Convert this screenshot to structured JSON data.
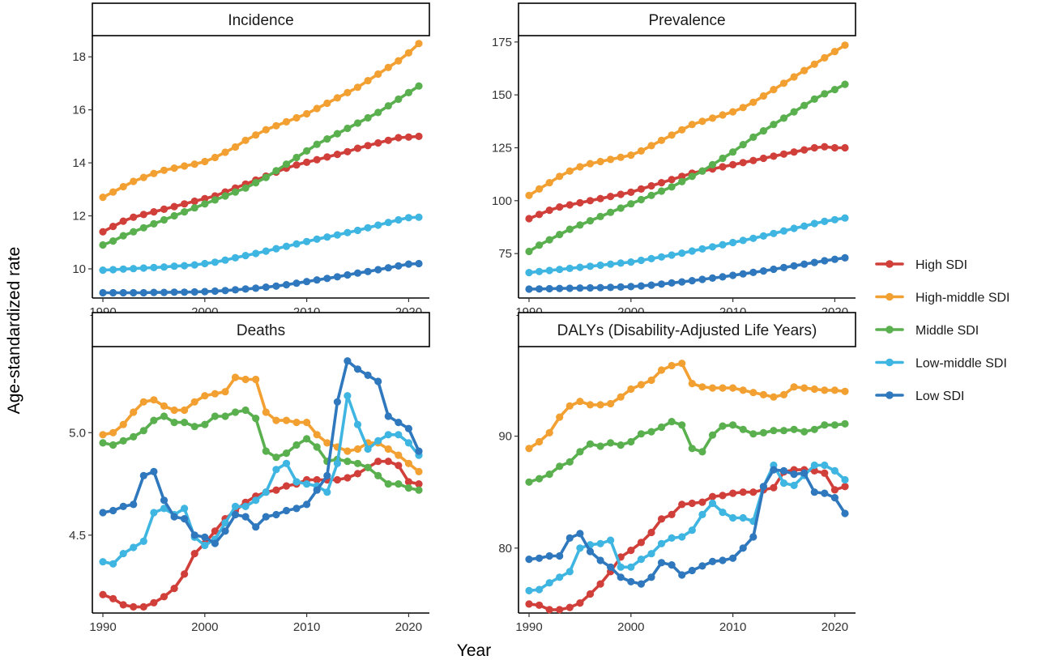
{
  "chart_data": {
    "type": "line",
    "xlabel": "Year",
    "ylabel": "Age-standardized rate",
    "legend_position": "right",
    "x": [
      1990,
      1991,
      1992,
      1993,
      1994,
      1995,
      1996,
      1997,
      1998,
      1999,
      2000,
      2001,
      2002,
      2003,
      2004,
      2005,
      2006,
      2007,
      2008,
      2009,
      2010,
      2011,
      2012,
      2013,
      2014,
      2015,
      2016,
      2017,
      2018,
      2019,
      2020,
      2021
    ],
    "series_styles": [
      {
        "name": "High SDI",
        "color": "#d13f3a"
      },
      {
        "name": "High-middle SDI",
        "color": "#f3a032"
      },
      {
        "name": "Middle SDI",
        "color": "#5ab04e"
      },
      {
        "name": "Low-middle SDI",
        "color": "#3fb5e1"
      },
      {
        "name": "Low SDI",
        "color": "#2f78bd"
      }
    ],
    "panels": [
      {
        "title": "Incidence",
        "xlim": [
          1990,
          2021
        ],
        "ylim": [
          8.9,
          18.8
        ],
        "x_ticks": [
          1990,
          2000,
          2010,
          2020
        ],
        "y_ticks": [
          10,
          12,
          14,
          16,
          18
        ],
        "y_tick_labels": [
          "10",
          "12",
          "14",
          "16",
          "18"
        ],
        "series": [
          {
            "name": "High SDI",
            "values": [
              11.4,
              11.6,
              11.8,
              11.95,
              12.05,
              12.15,
              12.25,
              12.35,
              12.45,
              12.55,
              12.65,
              12.75,
              12.9,
              13.05,
              13.2,
              13.35,
              13.5,
              13.65,
              13.8,
              13.92,
              14.02,
              14.12,
              14.22,
              14.32,
              14.42,
              14.55,
              14.65,
              14.75,
              14.85,
              14.95,
              14.97,
              15.0
            ]
          },
          {
            "name": "High-middle SDI",
            "values": [
              12.7,
              12.9,
              13.1,
              13.3,
              13.45,
              13.6,
              13.72,
              13.8,
              13.88,
              13.95,
              14.05,
              14.2,
              14.4,
              14.6,
              14.85,
              15.05,
              15.25,
              15.4,
              15.55,
              15.7,
              15.85,
              16.05,
              16.25,
              16.45,
              16.65,
              16.85,
              17.1,
              17.35,
              17.6,
              17.85,
              18.15,
              18.5
            ]
          },
          {
            "name": "Middle SDI",
            "values": [
              10.9,
              11.05,
              11.25,
              11.4,
              11.55,
              11.7,
              11.85,
              12.0,
              12.15,
              12.3,
              12.45,
              12.6,
              12.75,
              12.9,
              13.05,
              13.25,
              13.45,
              13.7,
              13.95,
              14.2,
              14.45,
              14.7,
              14.9,
              15.1,
              15.3,
              15.5,
              15.7,
              15.9,
              16.15,
              16.4,
              16.65,
              16.9
            ]
          },
          {
            "name": "Low-middle SDI",
            "values": [
              9.95,
              9.97,
              9.99,
              10.01,
              10.03,
              10.05,
              10.07,
              10.1,
              10.12,
              10.15,
              10.2,
              10.25,
              10.33,
              10.42,
              10.5,
              10.58,
              10.67,
              10.76,
              10.85,
              10.94,
              11.03,
              11.12,
              11.2,
              11.28,
              11.37,
              11.45,
              11.55,
              11.65,
              11.75,
              11.85,
              11.93,
              11.95
            ]
          },
          {
            "name": "Low SDI",
            "values": [
              9.1,
              9.1,
              9.1,
              9.1,
              9.1,
              9.11,
              9.11,
              9.12,
              9.12,
              9.13,
              9.14,
              9.16,
              9.18,
              9.21,
              9.24,
              9.27,
              9.31,
              9.35,
              9.4,
              9.46,
              9.52,
              9.58,
              9.64,
              9.7,
              9.77,
              9.84,
              9.9,
              9.97,
              10.04,
              10.11,
              10.18,
              10.2
            ]
          }
        ]
      },
      {
        "title": "Prevalence",
        "xlim": [
          1990,
          2021
        ],
        "ylim": [
          54,
          178
        ],
        "x_ticks": [
          1990,
          2000,
          2010,
          2020
        ],
        "y_ticks": [
          75,
          100,
          125,
          150,
          175
        ],
        "y_tick_labels": [
          "75",
          "100",
          "125",
          "150",
          "175"
        ],
        "series": [
          {
            "name": "High SDI",
            "values": [
              91.5,
              93.5,
              95.5,
              97.0,
              98.0,
              99.0,
              100.0,
              101.0,
              102.0,
              103.0,
              104.0,
              105.5,
              107.0,
              108.5,
              110.0,
              111.5,
              113.0,
              114.0,
              115.0,
              116.0,
              117.0,
              118.0,
              119.0,
              120.0,
              121.0,
              122.0,
              123.0,
              124.0,
              125.0,
              125.5,
              125.0,
              125.0
            ]
          },
          {
            "name": "High-middle SDI",
            "values": [
              102.5,
              105.5,
              108.5,
              111.5,
              114.0,
              116.0,
              117.5,
              118.5,
              119.5,
              120.5,
              121.5,
              123.5,
              126.0,
              128.5,
              131.0,
              133.5,
              136.0,
              137.5,
              139.0,
              140.5,
              142.0,
              144.0,
              146.5,
              149.5,
              152.5,
              155.5,
              158.5,
              161.5,
              164.5,
              167.5,
              170.5,
              173.5
            ]
          },
          {
            "name": "Middle SDI",
            "values": [
              76.0,
              79.0,
              81.5,
              84.0,
              86.5,
              88.5,
              90.5,
              92.5,
              94.5,
              96.5,
              98.5,
              100.5,
              102.5,
              104.5,
              106.5,
              109.0,
              111.5,
              114.0,
              117.0,
              120.0,
              123.0,
              126.5,
              130.0,
              133.0,
              136.0,
              139.0,
              142.0,
              145.0,
              148.0,
              150.5,
              152.5,
              155.0
            ]
          },
          {
            "name": "Low-middle SDI",
            "values": [
              66.0,
              66.5,
              67.0,
              67.5,
              68.0,
              68.5,
              69.0,
              69.5,
              70.0,
              70.5,
              71.0,
              71.8,
              72.6,
              73.4,
              74.3,
              75.2,
              76.2,
              77.2,
              78.2,
              79.2,
              80.2,
              81.2,
              82.2,
              83.3,
              84.5,
              85.7,
              86.9,
              88.0,
              89.2,
              90.2,
              91.0,
              91.8
            ]
          },
          {
            "name": "Low SDI",
            "values": [
              58.2,
              58.3,
              58.4,
              58.5,
              58.6,
              58.7,
              58.8,
              58.9,
              59.0,
              59.2,
              59.4,
              59.7,
              60.1,
              60.6,
              61.1,
              61.6,
              62.2,
              62.8,
              63.4,
              64.0,
              64.7,
              65.4,
              66.1,
              66.8,
              67.6,
              68.4,
              69.2,
              70.0,
              70.8,
              71.6,
              72.3,
              73.0
            ]
          }
        ]
      },
      {
        "title": "Deaths",
        "xlim": [
          1990,
          2021
        ],
        "ylim": [
          4.12,
          5.42
        ],
        "x_ticks": [
          1990,
          2000,
          2010,
          2020
        ],
        "y_ticks": [
          4.5,
          5.0
        ],
        "y_tick_labels": [
          "4.5",
          "5.0"
        ],
        "series": [
          {
            "name": "High SDI",
            "values": [
              4.21,
              4.19,
              4.16,
              4.15,
              4.15,
              4.17,
              4.2,
              4.24,
              4.31,
              4.41,
              4.46,
              4.52,
              4.58,
              4.62,
              4.66,
              4.69,
              4.71,
              4.72,
              4.74,
              4.75,
              4.77,
              4.77,
              4.77,
              4.77,
              4.78,
              4.8,
              4.83,
              4.86,
              4.86,
              4.84,
              4.76,
              4.75
            ]
          },
          {
            "name": "High-middle SDI",
            "values": [
              4.99,
              5.0,
              5.04,
              5.1,
              5.15,
              5.16,
              5.13,
              5.11,
              5.11,
              5.15,
              5.18,
              5.19,
              5.2,
              5.27,
              5.26,
              5.26,
              5.1,
              5.06,
              5.06,
              5.05,
              5.05,
              4.99,
              4.95,
              4.93,
              4.91,
              4.92,
              4.95,
              4.95,
              4.92,
              4.89,
              4.85,
              4.81
            ]
          },
          {
            "name": "Middle SDI",
            "values": [
              4.95,
              4.94,
              4.96,
              4.98,
              5.01,
              5.06,
              5.08,
              5.05,
              5.05,
              5.03,
              5.04,
              5.08,
              5.08,
              5.1,
              5.11,
              5.07,
              4.91,
              4.88,
              4.9,
              4.94,
              4.97,
              4.93,
              4.86,
              4.87,
              4.86,
              4.85,
              4.83,
              4.79,
              4.75,
              4.75,
              4.73,
              4.72
            ]
          },
          {
            "name": "Low-middle SDI",
            "values": [
              4.37,
              4.36,
              4.41,
              4.44,
              4.47,
              4.61,
              4.63,
              4.6,
              4.63,
              4.49,
              4.45,
              4.48,
              4.56,
              4.64,
              4.64,
              4.67,
              4.71,
              4.82,
              4.85,
              4.76,
              4.75,
              4.74,
              4.71,
              4.85,
              5.18,
              5.04,
              4.92,
              4.96,
              4.99,
              4.99,
              4.95,
              4.89
            ]
          },
          {
            "name": "Low SDI",
            "values": [
              4.61,
              4.62,
              4.64,
              4.65,
              4.79,
              4.81,
              4.67,
              4.59,
              4.58,
              4.5,
              4.49,
              4.46,
              4.52,
              4.6,
              4.59,
              4.54,
              4.59,
              4.6,
              4.62,
              4.63,
              4.65,
              4.72,
              4.79,
              5.15,
              5.35,
              5.31,
              5.28,
              5.25,
              5.08,
              5.05,
              5.02,
              4.91
            ]
          }
        ]
      },
      {
        "title": "DALYs (Disability-Adjusted Life Years)",
        "xlim": [
          1990,
          2021
        ],
        "ylim": [
          74.2,
          98.0
        ],
        "x_ticks": [
          1990,
          2000,
          2010,
          2020
        ],
        "y_ticks": [
          80,
          90
        ],
        "y_tick_labels": [
          "80",
          "90"
        ],
        "series": [
          {
            "name": "High SDI",
            "values": [
              75.0,
              74.9,
              74.5,
              74.5,
              74.7,
              75.1,
              75.9,
              76.8,
              77.9,
              79.2,
              79.8,
              80.5,
              81.4,
              82.6,
              83.0,
              83.9,
              84.0,
              84.1,
              84.6,
              84.7,
              84.9,
              85.0,
              85.0,
              85.2,
              85.4,
              86.8,
              87.0,
              87.0,
              86.9,
              86.7,
              85.2,
              85.5
            ]
          },
          {
            "name": "High-middle SDI",
            "values": [
              88.9,
              89.5,
              90.3,
              91.7,
              92.7,
              93.1,
              92.8,
              92.8,
              92.9,
              93.5,
              94.2,
              94.6,
              95.0,
              95.9,
              96.3,
              96.5,
              94.7,
              94.4,
              94.3,
              94.3,
              94.3,
              94.1,
              93.9,
              93.7,
              93.5,
              93.7,
              94.4,
              94.3,
              94.2,
              94.1,
              94.1,
              94.0
            ]
          },
          {
            "name": "Middle SDI",
            "values": [
              85.9,
              86.2,
              86.6,
              87.3,
              87.7,
              88.6,
              89.3,
              89.1,
              89.4,
              89.2,
              89.5,
              90.2,
              90.4,
              90.8,
              91.3,
              91.0,
              88.9,
              88.6,
              90.1,
              90.9,
              91.0,
              90.6,
              90.2,
              90.3,
              90.5,
              90.5,
              90.6,
              90.4,
              90.6,
              91.0,
              91.0,
              91.1
            ]
          },
          {
            "name": "Low-middle SDI",
            "values": [
              76.2,
              76.3,
              76.9,
              77.4,
              77.9,
              80.0,
              80.3,
              80.4,
              80.7,
              78.3,
              78.3,
              79.0,
              79.5,
              80.4,
              80.9,
              81.0,
              81.6,
              83.0,
              84.0,
              83.2,
              82.7,
              82.7,
              82.4,
              85.5,
              87.4,
              85.8,
              85.6,
              86.5,
              87.4,
              87.4,
              86.9,
              86.1
            ]
          },
          {
            "name": "Low SDI",
            "values": [
              79.0,
              79.1,
              79.3,
              79.3,
              80.9,
              81.3,
              79.7,
              78.9,
              78.3,
              77.4,
              77.0,
              76.8,
              77.4,
              78.7,
              78.5,
              77.6,
              78.0,
              78.4,
              78.8,
              78.9,
              79.1,
              80.0,
              81.0,
              85.5,
              87.0,
              86.9,
              86.6,
              86.7,
              85.0,
              84.9,
              84.5,
              83.1
            ]
          }
        ]
      }
    ]
  }
}
